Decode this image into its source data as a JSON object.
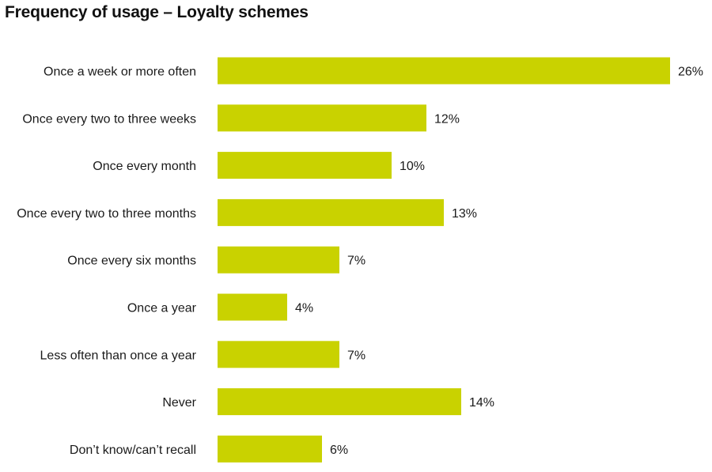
{
  "chart_data": {
    "type": "bar",
    "orientation": "horizontal",
    "title": "Frequency of usage – Loyalty schemes",
    "categories": [
      "Once a week or more often",
      "Once every two to three weeks",
      "Once every month",
      "Once every two to three months",
      "Once every six months",
      "Once a year",
      "Less often than once a year",
      "Never",
      "Don’t know/can’t recall"
    ],
    "values": [
      26,
      12,
      10,
      13,
      7,
      4,
      7,
      14,
      6
    ],
    "value_labels": [
      "26%",
      "12%",
      "10%",
      "13%",
      "7%",
      "4%",
      "7%",
      "14%",
      "6%"
    ],
    "unit": "%",
    "xlim": [
      0,
      26
    ],
    "grid": false,
    "legend": "none",
    "colors": {
      "bar": "#c9d200",
      "text": "#1a1a1a"
    }
  }
}
